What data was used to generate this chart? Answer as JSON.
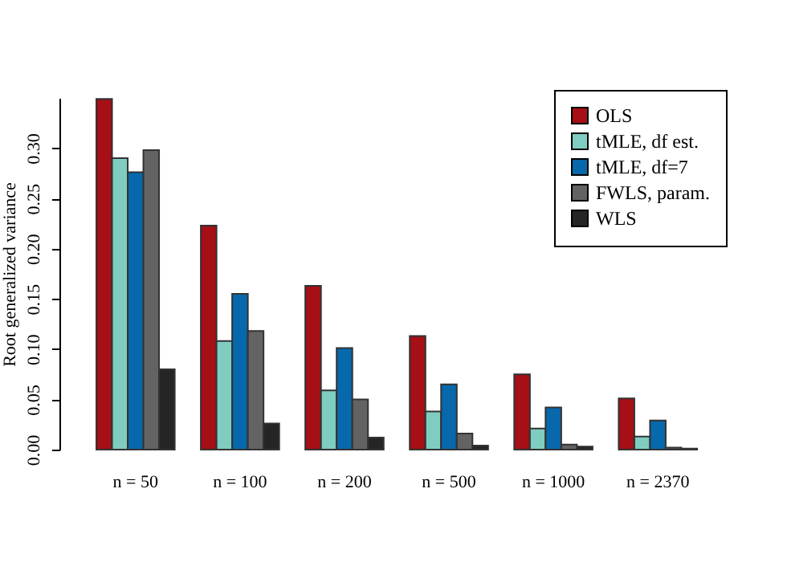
{
  "chart_data": {
    "type": "bar",
    "ylabel": "Root generalized variance",
    "categories": [
      "n = 50",
      "n = 100",
      "n = 200",
      "n = 500",
      "n = 1000",
      "n = 2370"
    ],
    "series": [
      {
        "name": "OLS",
        "color": "#a50f15",
        "values": [
          0.349,
          0.223,
          0.163,
          0.113,
          0.075,
          0.051
        ]
      },
      {
        "name": "tMLE, df est.",
        "color": "#7fcdc1",
        "values": [
          0.29,
          0.108,
          0.059,
          0.038,
          0.021,
          0.013
        ]
      },
      {
        "name": "tMLE, df=7",
        "color": "#0868ac",
        "values": [
          0.276,
          0.155,
          0.101,
          0.065,
          0.042,
          0.029
        ]
      },
      {
        "name": "FWLS, param.",
        "color": "#636363",
        "values": [
          0.298,
          0.118,
          0.05,
          0.016,
          0.005,
          0.002
        ]
      },
      {
        "name": "WLS",
        "color": "#252525",
        "values": [
          0.08,
          0.026,
          0.012,
          0.004,
          0.003,
          0.001
        ]
      }
    ],
    "ylim": [
      0,
      0.35
    ],
    "yticks": [
      {
        "value": 0,
        "label": "0.00"
      },
      {
        "value": 0.05,
        "label": "0.05"
      },
      {
        "value": 0.1,
        "label": "0.10"
      },
      {
        "value": 0.15,
        "label": "0.15"
      },
      {
        "value": 0.2,
        "label": "0.20"
      },
      {
        "value": 0.25,
        "label": "0.25"
      },
      {
        "value": 0.3,
        "label": "0.30"
      }
    ],
    "grid": false,
    "legend": "top right"
  }
}
